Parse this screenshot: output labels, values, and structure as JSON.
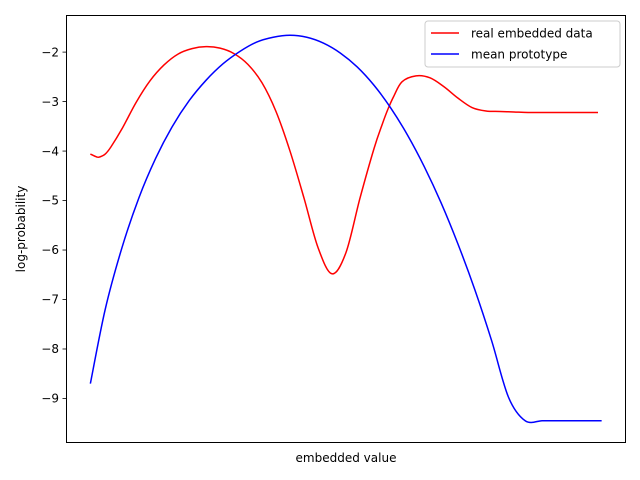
{
  "chart_data": {
    "type": "line",
    "title": "",
    "xlabel": "embedded value",
    "ylabel": "log-probability",
    "xlim": [
      0,
      1
    ],
    "ylim": [
      -9.9,
      -1.25
    ],
    "x_ticks_visible": false,
    "yticks": [
      -9,
      -8,
      -7,
      -6,
      -5,
      -4,
      -3,
      -2
    ],
    "ytick_labels": [
      "−9",
      "−8",
      "−7",
      "−6",
      "−5",
      "−4",
      "−3",
      "−2"
    ],
    "grid": false,
    "legend_placement": "top-right",
    "series": [
      {
        "name": "real embedded data",
        "color": "#ff0000",
        "x": [
          0.0435,
          0.055,
          0.06,
          0.07,
          0.08,
          0.1,
          0.125,
          0.15,
          0.175,
          0.2,
          0.225,
          0.25,
          0.275,
          0.3,
          0.325,
          0.35,
          0.375,
          0.4,
          0.425,
          0.45,
          0.475,
          0.5,
          0.525,
          0.55,
          0.565,
          0.575,
          0.585,
          0.6,
          0.625,
          0.65,
          0.675,
          0.7,
          0.725,
          0.75,
          0.775,
          0.8,
          0.825,
          0.85,
          0.875,
          0.9,
          0.925,
          0.95
        ],
        "y": [
          -4.06,
          -4.12,
          -4.12,
          -4.06,
          -3.92,
          -3.55,
          -3.02,
          -2.58,
          -2.26,
          -2.04,
          -1.93,
          -1.89,
          -1.92,
          -2.03,
          -2.25,
          -2.62,
          -3.2,
          -4.0,
          -4.95,
          -5.95,
          -6.48,
          -6.05,
          -4.95,
          -3.95,
          -3.45,
          -3.15,
          -2.9,
          -2.6,
          -2.48,
          -2.52,
          -2.7,
          -2.93,
          -3.12,
          -3.19,
          -3.2,
          -3.21,
          -3.22,
          -3.22,
          -3.22,
          -3.22,
          -3.22,
          -3.22
        ]
      },
      {
        "name": "mean prototype",
        "color": "#0000ff",
        "x": [
          0.0435,
          0.07,
          0.1,
          0.13,
          0.16,
          0.19,
          0.22,
          0.25,
          0.28,
          0.31,
          0.34,
          0.37,
          0.4,
          0.43,
          0.46,
          0.49,
          0.52,
          0.55,
          0.58,
          0.61,
          0.64,
          0.67,
          0.7,
          0.73,
          0.76,
          0.79,
          0.82,
          0.85,
          0.87,
          0.9,
          0.93,
          0.9565
        ],
        "y": [
          -8.7,
          -7.2,
          -5.95,
          -4.95,
          -4.15,
          -3.5,
          -2.98,
          -2.57,
          -2.24,
          -1.99,
          -1.8,
          -1.7,
          -1.66,
          -1.7,
          -1.82,
          -2.02,
          -2.3,
          -2.67,
          -3.13,
          -3.68,
          -4.32,
          -5.05,
          -5.88,
          -6.8,
          -7.83,
          -8.97,
          -9.45,
          -9.45,
          -9.45,
          -9.45,
          -9.45,
          -9.45
        ]
      }
    ]
  }
}
